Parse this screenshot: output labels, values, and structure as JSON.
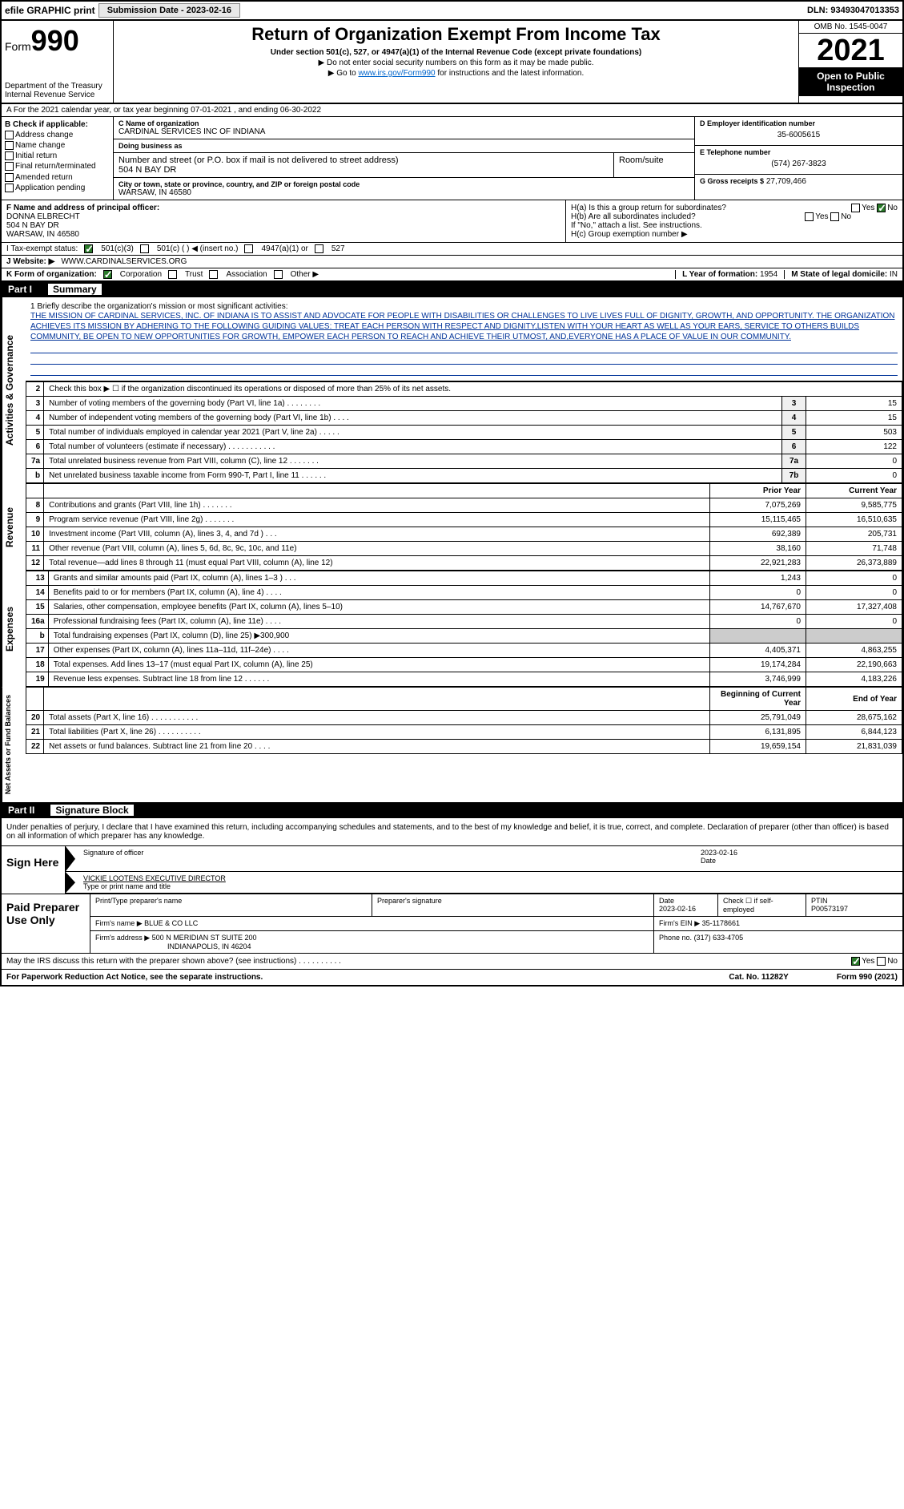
{
  "topbar": {
    "efile": "efile GRAPHIC print",
    "submission_label": "Submission Date - 2023-02-16",
    "dln": "DLN: 93493047013353"
  },
  "header": {
    "form_prefix": "Form",
    "form_num": "990",
    "dept": "Department of the Treasury",
    "irs": "Internal Revenue Service",
    "title": "Return of Organization Exempt From Income Tax",
    "sub1": "Under section 501(c), 527, or 4947(a)(1) of the Internal Revenue Code (except private foundations)",
    "sub2": "▶ Do not enter social security numbers on this form as it may be made public.",
    "sub3_pre": "▶ Go to ",
    "sub3_link": "www.irs.gov/Form990",
    "sub3_post": " for instructions and the latest information.",
    "omb": "OMB No. 1545-0047",
    "year": "2021",
    "inspect": "Open to Public Inspection"
  },
  "row_a": "A For the 2021 calendar year, or tax year beginning 07-01-2021  , and ending 06-30-2022",
  "box_b": {
    "label": "B Check if applicable:",
    "items": [
      "Address change",
      "Name change",
      "Initial return",
      "Final return/terminated",
      "Amended return",
      "Application pending"
    ]
  },
  "box_c": {
    "name_lbl": "C Name of organization",
    "name": "CARDINAL SERVICES INC OF INDIANA",
    "dba_lbl": "Doing business as",
    "dba": "",
    "addr_lbl": "Number and street (or P.O. box if mail is not delivered to street address)",
    "room_lbl": "Room/suite",
    "addr": "504 N BAY DR",
    "city_lbl": "City or town, state or province, country, and ZIP or foreign postal code",
    "city": "WARSAW, IN  46580"
  },
  "box_d": {
    "ein_lbl": "D Employer identification number",
    "ein": "35-6005615",
    "phone_lbl": "E Telephone number",
    "phone": "(574) 267-3823",
    "gross_lbl": "G Gross receipts $",
    "gross": "27,709,466"
  },
  "box_f": {
    "lbl": "F  Name and address of principal officer:",
    "name": "DONNA ELBRECHT",
    "addr1": "504 N BAY DR",
    "addr2": "WARSAW, IN  46580"
  },
  "box_h": {
    "ha": "H(a)  Is this a group return for subordinates?",
    "hb": "H(b)  Are all subordinates included?",
    "hb2": "If \"No,\" attach a list. See instructions.",
    "hc": "H(c)  Group exemption number ▶"
  },
  "row_i": {
    "lbl": "I   Tax-exempt status:",
    "opts": [
      "501(c)(3)",
      "501(c) (  ) ◀ (insert no.)",
      "4947(a)(1) or",
      "527"
    ]
  },
  "row_j": {
    "lbl": "J   Website: ▶",
    "val": "WWW.CARDINALSERVICES.ORG"
  },
  "row_k": {
    "lbl": "K Form of organization:",
    "opts": [
      "Corporation",
      "Trust",
      "Association",
      "Other ▶"
    ]
  },
  "row_l": {
    "lbl": "L Year of formation:",
    "val": "1954"
  },
  "row_m": {
    "lbl": "M State of legal domicile:",
    "val": "IN"
  },
  "part1": {
    "label": "Part I",
    "title": "Summary"
  },
  "mission": {
    "q": "1   Briefly describe the organization's mission or most significant activities:",
    "txt": "THE MISSION OF CARDINAL SERVICES, INC. OF INDIANA IS TO ASSIST AND ADVOCATE FOR PEOPLE WITH DISABILITIES OR CHALLENGES TO LIVE LIVES FULL OF DIGNITY, GROWTH, AND OPPORTUNITY. THE ORGANIZATION ACHIEVES ITS MISSION BY ADHERING TO THE FOLLOWING GUIDING VALUES: TREAT EACH PERSON WITH RESPECT AND DIGNITY,LISTEN WITH YOUR HEART AS WELL AS YOUR EARS, SERVICE TO OTHERS BUILDS COMMUNITY, BE OPEN TO NEW OPPORTUNITIES FOR GROWTH, EMPOWER EACH PERSON TO REACH AND ACHIEVE THEIR UTMOST, AND,EVERYONE HAS A PLACE OF VALUE IN OUR COMMUNITY."
  },
  "lines_gov": [
    {
      "n": "2",
      "d": "Check this box ▶ ☐ if the organization discontinued its operations or disposed of more than 25% of its net assets.",
      "rn": "",
      "v": ""
    },
    {
      "n": "3",
      "d": "Number of voting members of the governing body (Part VI, line 1a)  .  .  .  .  .  .  .  .",
      "rn": "3",
      "v": "15"
    },
    {
      "n": "4",
      "d": "Number of independent voting members of the governing body (Part VI, line 1b)  .  .  .  .",
      "rn": "4",
      "v": "15"
    },
    {
      "n": "5",
      "d": "Total number of individuals employed in calendar year 2021 (Part V, line 2a)  .  .  .  .  .",
      "rn": "5",
      "v": "503"
    },
    {
      "n": "6",
      "d": "Total number of volunteers (estimate if necessary)  .  .  .  .  .  .  .  .  .  .  .",
      "rn": "6",
      "v": "122"
    },
    {
      "n": "7a",
      "d": "Total unrelated business revenue from Part VIII, column (C), line 12  .  .  .  .  .  .  .",
      "rn": "7a",
      "v": "0"
    },
    {
      "n": "b",
      "d": "Net unrelated business taxable income from Form 990-T, Part I, line 11  .  .  .  .  .  .",
      "rn": "7b",
      "v": "0"
    }
  ],
  "hdr_prior": "Prior Year",
  "hdr_curr": "Current Year",
  "lines_rev": [
    {
      "n": "8",
      "d": "Contributions and grants (Part VIII, line 1h)  .  .  .  .  .  .  .",
      "p": "7,075,269",
      "c": "9,585,775"
    },
    {
      "n": "9",
      "d": "Program service revenue (Part VIII, line 2g)  .  .  .  .  .  .  .",
      "p": "15,115,465",
      "c": "16,510,635"
    },
    {
      "n": "10",
      "d": "Investment income (Part VIII, column (A), lines 3, 4, and 7d )  .  .  .",
      "p": "692,389",
      "c": "205,731"
    },
    {
      "n": "11",
      "d": "Other revenue (Part VIII, column (A), lines 5, 6d, 8c, 9c, 10c, and 11e)",
      "p": "38,160",
      "c": "71,748"
    },
    {
      "n": "12",
      "d": "Total revenue—add lines 8 through 11 (must equal Part VIII, column (A), line 12)",
      "p": "22,921,283",
      "c": "26,373,889"
    }
  ],
  "lines_exp": [
    {
      "n": "13",
      "d": "Grants and similar amounts paid (Part IX, column (A), lines 1–3 )  .  .  .",
      "p": "1,243",
      "c": "0"
    },
    {
      "n": "14",
      "d": "Benefits paid to or for members (Part IX, column (A), line 4)  .  .  .  .",
      "p": "0",
      "c": "0"
    },
    {
      "n": "15",
      "d": "Salaries, other compensation, employee benefits (Part IX, column (A), lines 5–10)",
      "p": "14,767,670",
      "c": "17,327,408"
    },
    {
      "n": "16a",
      "d": "Professional fundraising fees (Part IX, column (A), line 11e)  .  .  .  .",
      "p": "0",
      "c": "0"
    },
    {
      "n": "b",
      "d": "Total fundraising expenses (Part IX, column (D), line 25) ▶300,900",
      "p": "",
      "c": "",
      "shade": true
    },
    {
      "n": "17",
      "d": "Other expenses (Part IX, column (A), lines 11a–11d, 11f–24e)  .  .  .  .",
      "p": "4,405,371",
      "c": "4,863,255"
    },
    {
      "n": "18",
      "d": "Total expenses. Add lines 13–17 (must equal Part IX, column (A), line 25)",
      "p": "19,174,284",
      "c": "22,190,663"
    },
    {
      "n": "19",
      "d": "Revenue less expenses. Subtract line 18 from line 12  .  .  .  .  .  .",
      "p": "3,746,999",
      "c": "4,183,226"
    }
  ],
  "hdr_boy": "Beginning of Current Year",
  "hdr_eoy": "End of Year",
  "lines_net": [
    {
      "n": "20",
      "d": "Total assets (Part X, line 16)  .  .  .  .  .  .  .  .  .  .  .",
      "p": "25,791,049",
      "c": "28,675,162"
    },
    {
      "n": "21",
      "d": "Total liabilities (Part X, line 26)  .  .  .  .  .  .  .  .  .  .",
      "p": "6,131,895",
      "c": "6,844,123"
    },
    {
      "n": "22",
      "d": "Net assets or fund balances. Subtract line 21 from line 20  .  .  .  .",
      "p": "19,659,154",
      "c": "21,831,039"
    }
  ],
  "sidebars": {
    "gov": "Activities & Governance",
    "rev": "Revenue",
    "exp": "Expenses",
    "net": "Net Assets or Fund Balances"
  },
  "part2": {
    "label": "Part II",
    "title": "Signature Block"
  },
  "sig": {
    "decl": "Under penalties of perjury, I declare that I have examined this return, including accompanying schedules and statements, and to the best of my knowledge and belief, it is true, correct, and complete. Declaration of preparer (other than officer) is based on all information of which preparer has any knowledge.",
    "sign_here": "Sign Here",
    "sig_lbl": "Signature of officer",
    "date_lbl": "Date",
    "date": "2023-02-16",
    "name": "VICKIE LOOTENS EXECUTIVE DIRECTOR",
    "name_lbl": "Type or print name and title"
  },
  "prep": {
    "label": "Paid Preparer Use Only",
    "h1": "Print/Type preparer's name",
    "h2": "Preparer's signature",
    "h3": "Date",
    "h3v": "2023-02-16",
    "h4": "Check ☐ if self-employed",
    "h5": "PTIN",
    "h5v": "P00573197",
    "firm_lbl": "Firm's name    ▶",
    "firm": "BLUE & CO LLC",
    "ein_lbl": "Firm's EIN ▶",
    "ein": "35-1178661",
    "addr_lbl": "Firm's address ▶",
    "addr1": "500 N MERIDIAN ST SUITE 200",
    "addr2": "INDIANAPOLIS, IN  46204",
    "phone_lbl": "Phone no.",
    "phone": "(317) 633-4705"
  },
  "footer": {
    "q": "May the IRS discuss this return with the preparer shown above? (see instructions)  .  .  .  .  .  .  .  .  .  .",
    "paperwork": "For Paperwork Reduction Act Notice, see the separate instructions.",
    "cat": "Cat. No. 11282Y",
    "form": "Form 990 (2021)"
  }
}
